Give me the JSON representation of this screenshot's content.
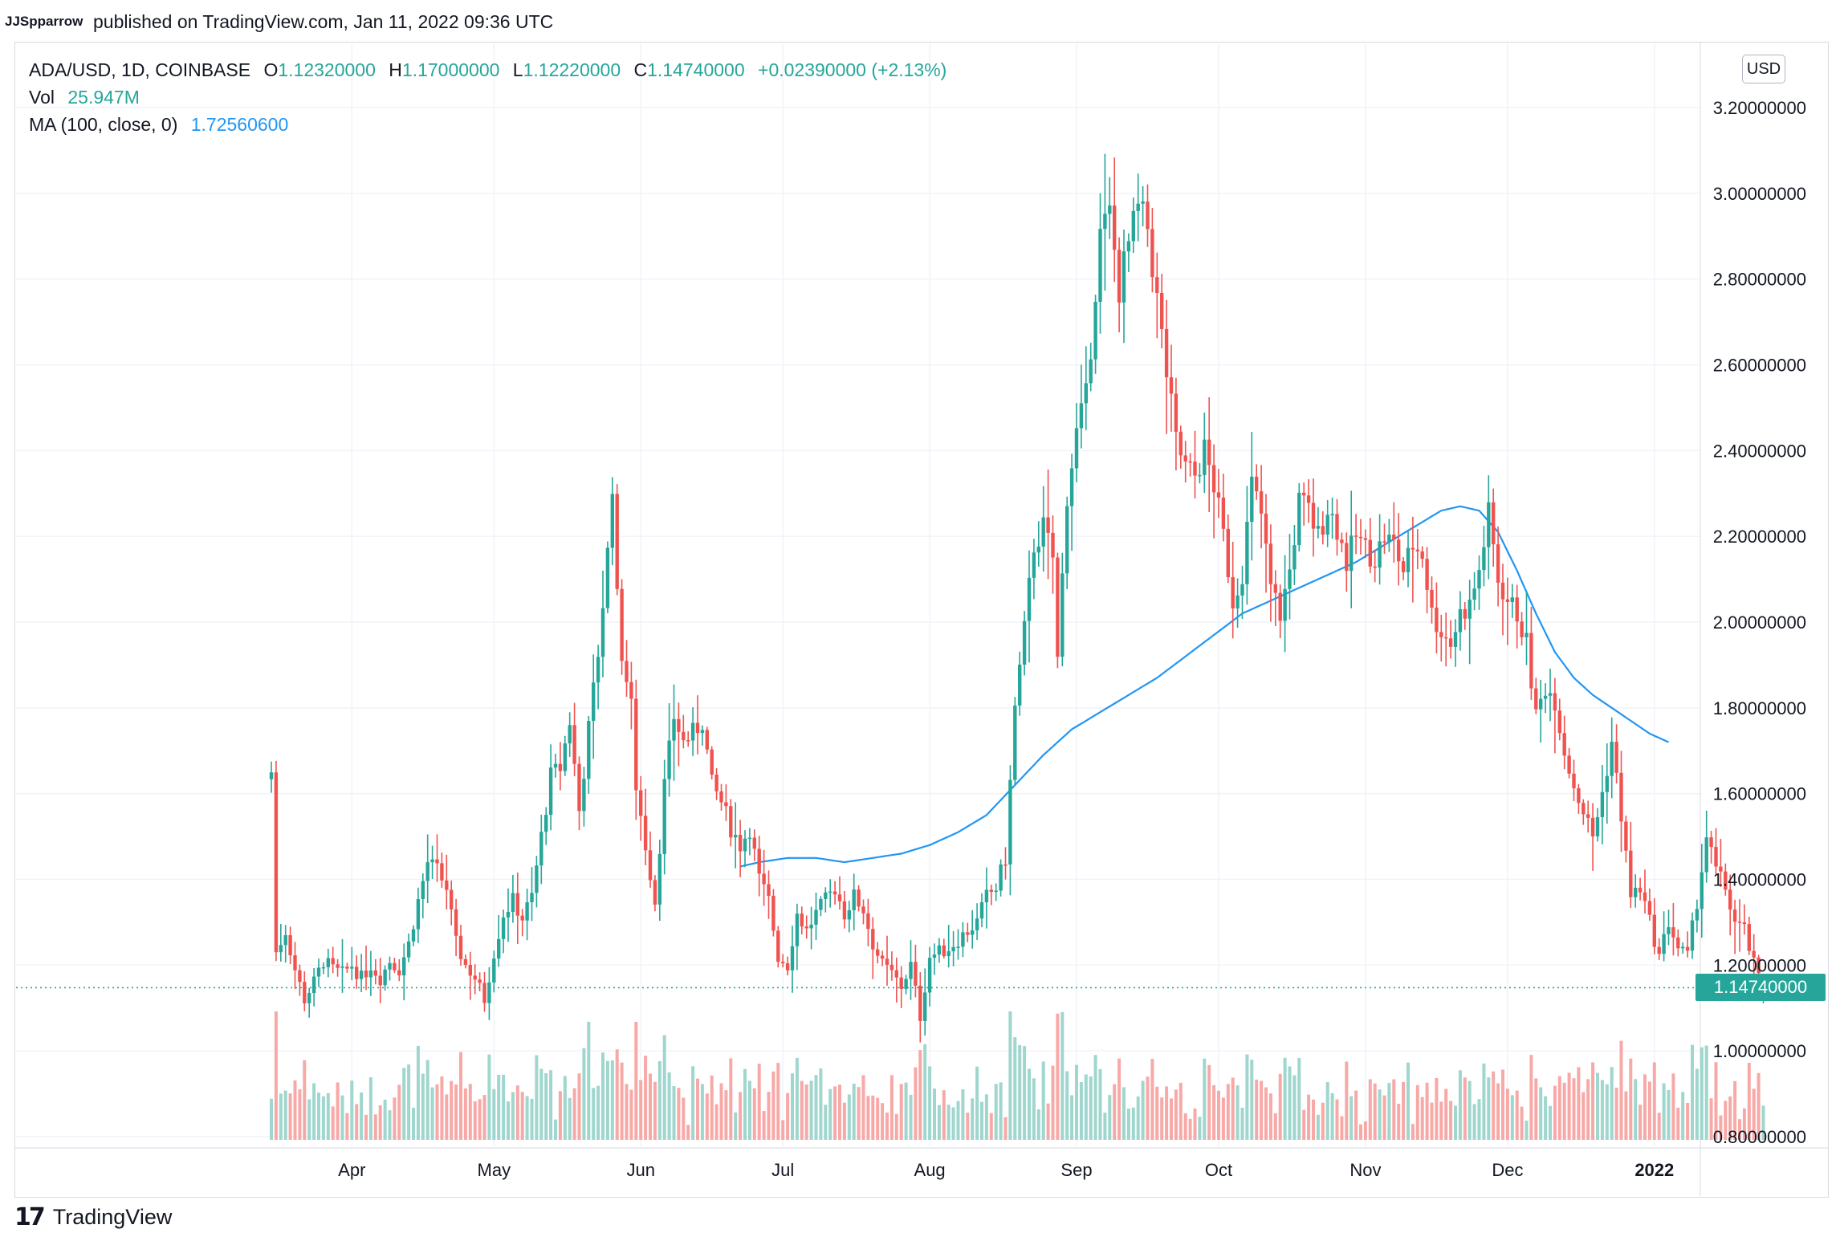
{
  "header": {
    "author": "JJSpparrow",
    "published": "published on TradingView.com, Jan 11, 2022 09:36 UTC"
  },
  "legend": {
    "symbol": "ADA/USD, 1D, COINBASE",
    "open_label": "O",
    "open": "1.12320000",
    "high_label": "H",
    "high": "1.17000000",
    "low_label": "L",
    "low": "1.12220000",
    "close_label": "C",
    "close": "1.14740000",
    "change": "+0.02390000 (+2.13%)",
    "vol_label": "Vol",
    "vol": "25.947M",
    "ma_label": "MA (100, close, 0)",
    "ma": "1.72560600"
  },
  "currency": "USD",
  "last_price": "1.14740000",
  "footer": {
    "brand": "TradingView"
  },
  "colors": {
    "up": "#26a69a",
    "down": "#ef5350",
    "ma": "#2196f3",
    "vol_up": "#9fd6cd",
    "vol_down": "#f7a9a7",
    "grid": "#f0f3fa"
  },
  "chart_data": {
    "type": "candlestick",
    "symbol": "ADA/USD",
    "interval": "1D",
    "ylim": [
      0.78,
      3.25
    ],
    "y_ticks": [
      "3.20000000",
      "3.00000000",
      "2.80000000",
      "2.60000000",
      "2.40000000",
      "2.20000000",
      "2.00000000",
      "1.80000000",
      "1.60000000",
      "1.40000000",
      "1.20000000",
      "1.00000000",
      "0.80000000"
    ],
    "y_tick_values": [
      3.2,
      3.0,
      2.8,
      2.6,
      2.4,
      2.2,
      2.0,
      1.8,
      1.6,
      1.4,
      1.2,
      1.0,
      0.8
    ],
    "x_ticks": [
      {
        "label": "Apr",
        "day": 17
      },
      {
        "label": "May",
        "day": 47
      },
      {
        "label": "Jun",
        "day": 78
      },
      {
        "label": "Jul",
        "day": 108
      },
      {
        "label": "Aug",
        "day": 139
      },
      {
        "label": "Sep",
        "day": 170
      },
      {
        "label": "Oct",
        "day": 200
      },
      {
        "label": "Nov",
        "day": 231
      },
      {
        "label": "Dec",
        "day": 261
      },
      {
        "label": "2022",
        "day": 292
      }
    ],
    "last_day": 302,
    "close_anchors": [
      [
        0,
        1.65
      ],
      [
        1,
        1.23
      ],
      [
        3,
        1.28
      ],
      [
        5,
        1.19
      ],
      [
        7,
        1.12
      ],
      [
        9,
        1.16
      ],
      [
        11,
        1.21
      ],
      [
        13,
        1.19
      ],
      [
        15,
        1.18
      ],
      [
        17,
        1.2
      ],
      [
        19,
        1.17
      ],
      [
        21,
        1.2
      ],
      [
        23,
        1.17
      ],
      [
        25,
        1.21
      ],
      [
        27,
        1.19
      ],
      [
        29,
        1.25
      ],
      [
        31,
        1.35
      ],
      [
        33,
        1.44
      ],
      [
        35,
        1.42
      ],
      [
        37,
        1.38
      ],
      [
        39,
        1.25
      ],
      [
        41,
        1.2
      ],
      [
        43,
        1.17
      ],
      [
        45,
        1.12
      ],
      [
        47,
        1.23
      ],
      [
        49,
        1.32
      ],
      [
        51,
        1.35
      ],
      [
        53,
        1.31
      ],
      [
        55,
        1.36
      ],
      [
        57,
        1.5
      ],
      [
        59,
        1.64
      ],
      [
        61,
        1.66
      ],
      [
        63,
        1.77
      ],
      [
        65,
        1.56
      ],
      [
        67,
        1.75
      ],
      [
        69,
        1.93
      ],
      [
        71,
        2.16
      ],
      [
        72,
        2.33
      ],
      [
        73,
        2.05
      ],
      [
        74,
        1.93
      ],
      [
        76,
        1.8
      ],
      [
        77,
        1.62
      ],
      [
        79,
        1.48
      ],
      [
        81,
        1.35
      ],
      [
        82,
        1.48
      ],
      [
        83,
        1.62
      ],
      [
        85,
        1.78
      ],
      [
        87,
        1.72
      ],
      [
        89,
        1.74
      ],
      [
        91,
        1.77
      ],
      [
        93,
        1.62
      ],
      [
        95,
        1.58
      ],
      [
        97,
        1.52
      ],
      [
        99,
        1.48
      ],
      [
        101,
        1.52
      ],
      [
        103,
        1.4
      ],
      [
        105,
        1.35
      ],
      [
        107,
        1.22
      ],
      [
        109,
        1.2
      ],
      [
        111,
        1.32
      ],
      [
        113,
        1.28
      ],
      [
        115,
        1.32
      ],
      [
        117,
        1.35
      ],
      [
        119,
        1.38
      ],
      [
        121,
        1.32
      ],
      [
        123,
        1.36
      ],
      [
        125,
        1.33
      ],
      [
        127,
        1.25
      ],
      [
        129,
        1.2
      ],
      [
        131,
        1.18
      ],
      [
        133,
        1.15
      ],
      [
        135,
        1.2
      ],
      [
        137,
        1.08
      ],
      [
        139,
        1.22
      ],
      [
        141,
        1.23
      ],
      [
        143,
        1.24
      ],
      [
        145,
        1.26
      ],
      [
        147,
        1.28
      ],
      [
        149,
        1.3
      ],
      [
        151,
        1.36
      ],
      [
        153,
        1.38
      ],
      [
        155,
        1.45
      ],
      [
        157,
        1.8
      ],
      [
        159,
        1.98
      ],
      [
        161,
        2.18
      ],
      [
        163,
        2.22
      ],
      [
        165,
        2.15
      ],
      [
        166,
        1.91
      ],
      [
        168,
        2.3
      ],
      [
        170,
        2.44
      ],
      [
        172,
        2.52
      ],
      [
        174,
        2.78
      ],
      [
        175,
        2.9
      ],
      [
        177,
        2.95
      ],
      [
        179,
        2.78
      ],
      [
        181,
        2.88
      ],
      [
        183,
        2.96
      ],
      [
        185,
        2.92
      ],
      [
        187,
        2.75
      ],
      [
        189,
        2.58
      ],
      [
        191,
        2.42
      ],
      [
        193,
        2.36
      ],
      [
        195,
        2.34
      ],
      [
        197,
        2.4
      ],
      [
        199,
        2.32
      ],
      [
        201,
        2.2
      ],
      [
        203,
        2.05
      ],
      [
        205,
        2.12
      ],
      [
        207,
        2.32
      ],
      [
        209,
        2.25
      ],
      [
        211,
        2.08
      ],
      [
        213,
        2.02
      ],
      [
        215,
        2.12
      ],
      [
        217,
        2.28
      ],
      [
        219,
        2.26
      ],
      [
        221,
        2.2
      ],
      [
        223,
        2.27
      ],
      [
        225,
        2.22
      ],
      [
        227,
        2.14
      ],
      [
        229,
        2.2
      ],
      [
        231,
        2.17
      ],
      [
        233,
        2.15
      ],
      [
        235,
        2.2
      ],
      [
        237,
        2.18
      ],
      [
        239,
        2.12
      ],
      [
        241,
        2.18
      ],
      [
        243,
        2.16
      ],
      [
        245,
        2.02
      ],
      [
        247,
        1.98
      ],
      [
        249,
        1.95
      ],
      [
        251,
        2.02
      ],
      [
        253,
        2.04
      ],
      [
        255,
        2.12
      ],
      [
        257,
        2.25
      ],
      [
        259,
        2.1
      ],
      [
        261,
        2.05
      ],
      [
        263,
        2.02
      ],
      [
        265,
        1.95
      ],
      [
        267,
        1.78
      ],
      [
        269,
        1.85
      ],
      [
        271,
        1.82
      ],
      [
        273,
        1.7
      ],
      [
        275,
        1.62
      ],
      [
        277,
        1.56
      ],
      [
        279,
        1.5
      ],
      [
        281,
        1.6
      ],
      [
        283,
        1.72
      ],
      [
        285,
        1.55
      ],
      [
        287,
        1.36
      ],
      [
        289,
        1.38
      ],
      [
        291,
        1.3
      ],
      [
        293,
        1.22
      ],
      [
        295,
        1.3
      ],
      [
        297,
        1.24
      ],
      [
        299,
        1.22
      ],
      [
        301,
        1.35
      ],
      [
        303,
        1.5
      ],
      [
        305,
        1.42
      ],
      [
        307,
        1.38
      ],
      [
        309,
        1.3
      ],
      [
        311,
        1.28
      ],
      [
        313,
        1.2
      ],
      [
        315,
        1.14
      ]
    ],
    "ma_anchors": [
      [
        99,
        1.43
      ],
      [
        103,
        1.44
      ],
      [
        109,
        1.45
      ],
      [
        115,
        1.45
      ],
      [
        121,
        1.44
      ],
      [
        127,
        1.45
      ],
      [
        133,
        1.46
      ],
      [
        139,
        1.48
      ],
      [
        145,
        1.51
      ],
      [
        151,
        1.55
      ],
      [
        157,
        1.62
      ],
      [
        163,
        1.69
      ],
      [
        169,
        1.75
      ],
      [
        175,
        1.79
      ],
      [
        181,
        1.83
      ],
      [
        187,
        1.87
      ],
      [
        193,
        1.92
      ],
      [
        199,
        1.97
      ],
      [
        205,
        2.02
      ],
      [
        211,
        2.05
      ],
      [
        217,
        2.08
      ],
      [
        223,
        2.11
      ],
      [
        229,
        2.14
      ],
      [
        235,
        2.18
      ],
      [
        241,
        2.22
      ],
      [
        247,
        2.26
      ],
      [
        251,
        2.27
      ],
      [
        255,
        2.26
      ],
      [
        259,
        2.21
      ],
      [
        263,
        2.12
      ],
      [
        267,
        2.02
      ],
      [
        271,
        1.93
      ],
      [
        275,
        1.87
      ],
      [
        279,
        1.83
      ],
      [
        283,
        1.8
      ],
      [
        287,
        1.77
      ],
      [
        291,
        1.74
      ],
      [
        295,
        1.72
      ]
    ],
    "volume": {
      "base_level": 0.79,
      "scale_top": 1.08
    }
  }
}
